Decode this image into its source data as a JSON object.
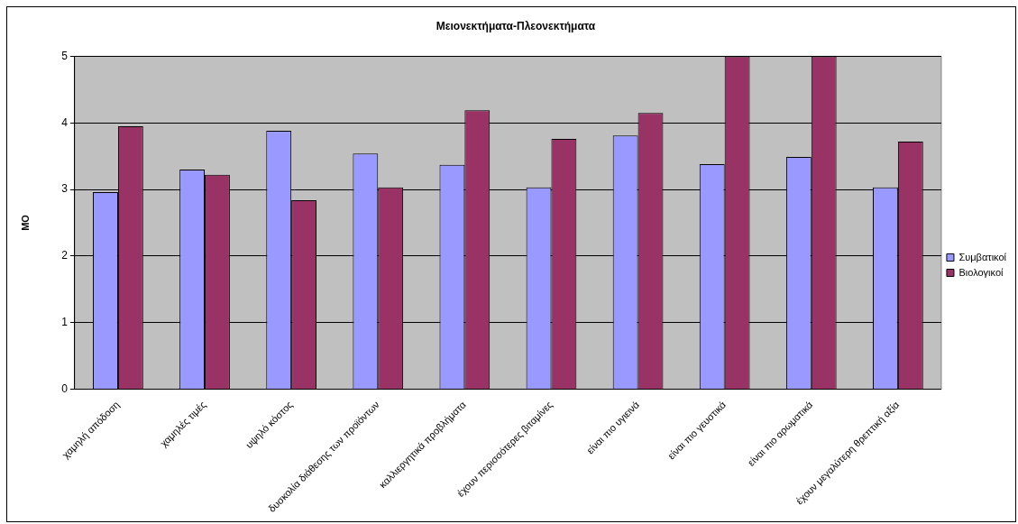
{
  "chart_data": {
    "type": "bar",
    "title": "Μειονεκτήματα-Πλεονεκτήματα",
    "ylabel": "ΜΟ",
    "categories": [
      "χαμηλή απόδοση",
      "χαμηλές τιμές",
      "υψηλό κόστος",
      "δυσκολία διάθεσης των προϊόντων",
      "καλλιεργητικά προβλήματα",
      "έχουν περισσότερες βιταμίνες",
      "είναι πιο υγιεινά",
      "είναι πιο γευστικά",
      "είναι πιο αρωματικά",
      "έχουν μεγαλύτερη θρεπτική αξία"
    ],
    "series": [
      {
        "name": "Συμβατικοί",
        "color": "#9999ff",
        "values": [
          2.96,
          3.3,
          3.88,
          3.54,
          3.37,
          3.03,
          3.81,
          3.38,
          3.49,
          3.03
        ]
      },
      {
        "name": "Βιολογικοί",
        "color": "#993366",
        "values": [
          3.95,
          3.22,
          2.84,
          3.03,
          4.19,
          3.76,
          4.15,
          5.0,
          5.0,
          3.72
        ]
      }
    ],
    "ylim": [
      0,
      5
    ],
    "yticks": [
      0,
      1,
      2,
      3,
      4,
      5
    ],
    "grid": "y",
    "legend": "right"
  }
}
